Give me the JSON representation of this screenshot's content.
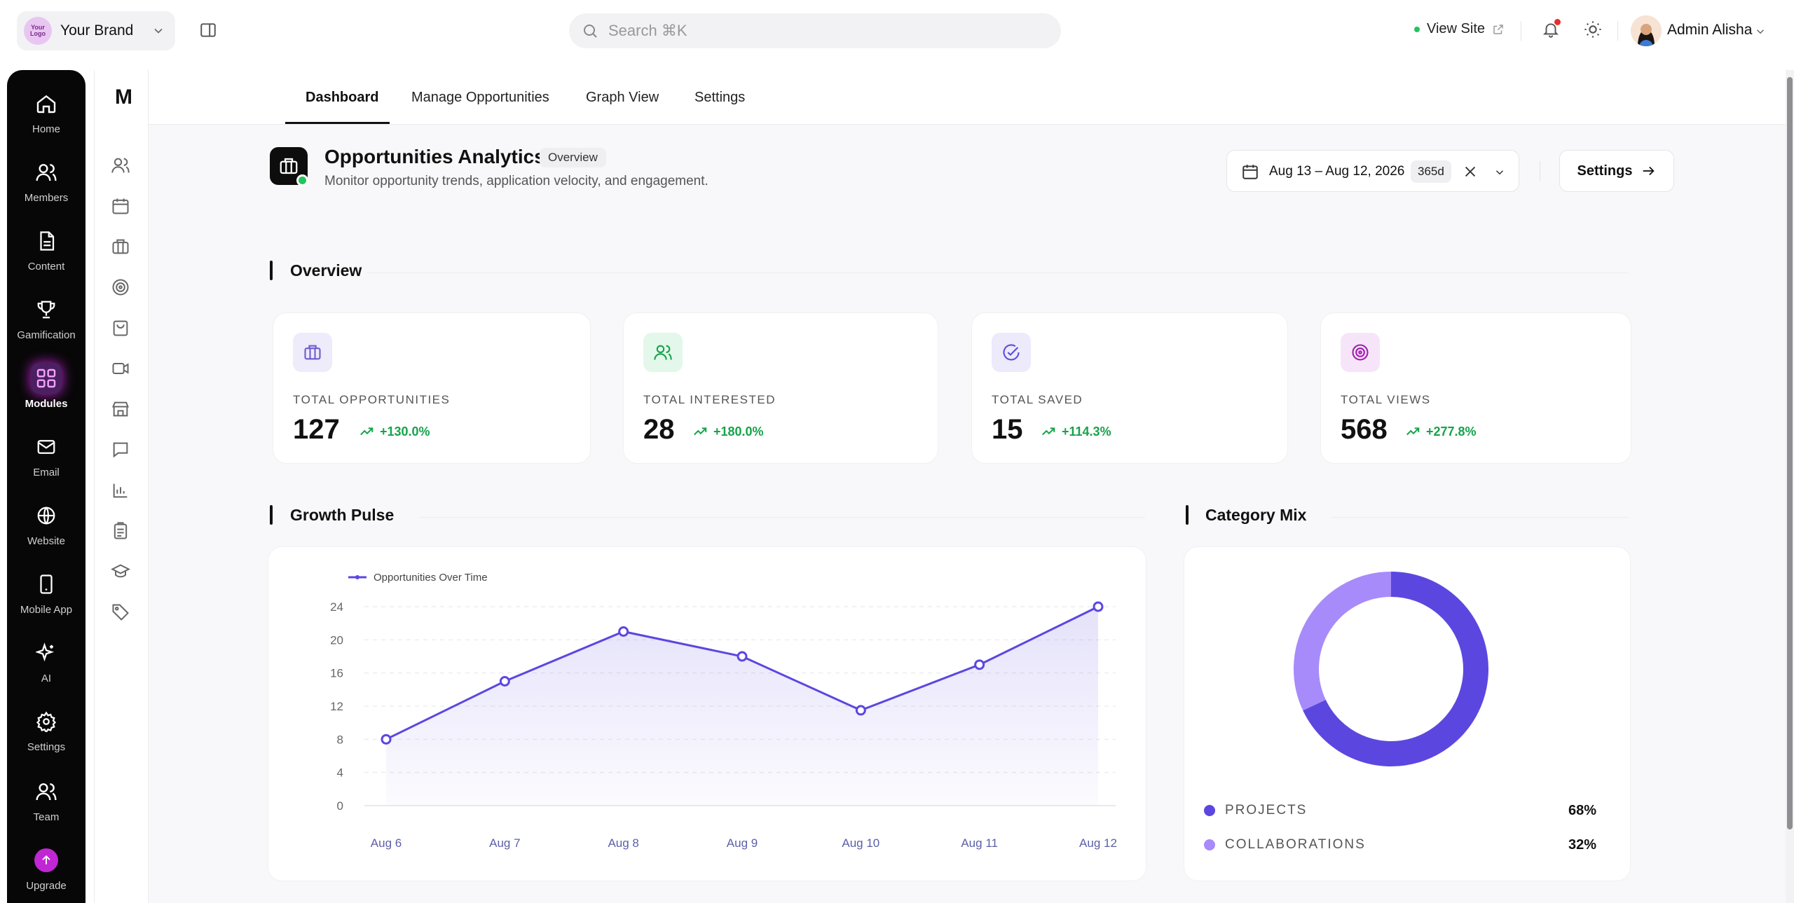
{
  "brand": {
    "logo_text": "Your Logo",
    "name": "Your Brand"
  },
  "search": {
    "placeholder": "Search ⌘K"
  },
  "header": {
    "view_site": "View Site",
    "user_name": "Admin Alisha"
  },
  "rail": [
    {
      "label": "Home",
      "icon": "home-icon"
    },
    {
      "label": "Members",
      "icon": "members-icon"
    },
    {
      "label": "Content",
      "icon": "content-icon"
    },
    {
      "label": "Gamification",
      "icon": "trophy-icon"
    },
    {
      "label": "Modules",
      "icon": "modules-icon",
      "active": true
    },
    {
      "label": "Email",
      "icon": "mail-icon"
    },
    {
      "label": "Website",
      "icon": "globe-icon"
    },
    {
      "label": "Mobile App",
      "icon": "phone-icon"
    },
    {
      "label": "AI",
      "icon": "sparkle-icon"
    },
    {
      "label": "Settings",
      "icon": "gear-icon"
    },
    {
      "label": "Team",
      "icon": "team-icon"
    },
    {
      "label": "Upgrade",
      "icon": "upgrade-icon"
    }
  ],
  "sub_rail": {
    "logo": "M"
  },
  "tabs": [
    {
      "label": "Dashboard",
      "active": true
    },
    {
      "label": "Manage Opportunities"
    },
    {
      "label": "Graph View"
    },
    {
      "label": "Settings"
    }
  ],
  "page": {
    "title": "Opportunities Analytics",
    "pill": "Overview",
    "subtitle": "Monitor opportunity trends, application velocity, and engagement.",
    "date_range": "Aug 13 – Aug 12, 2026",
    "date_badge": "365d",
    "settings_label": "Settings"
  },
  "sections": {
    "overview": "Overview",
    "growth": "Growth Pulse",
    "category": "Category Mix"
  },
  "stats": [
    {
      "label": "TOTAL OPPORTUNITIES",
      "value": "127",
      "delta": "+130.0%",
      "icon": "briefcase-icon",
      "color": "#6d5bd0",
      "bg": "#eeebfb"
    },
    {
      "label": "TOTAL INTERESTED",
      "value": "28",
      "delta": "+180.0%",
      "icon": "users-icon",
      "color": "#16a34a",
      "bg": "#e3f7ea"
    },
    {
      "label": "TOTAL SAVED",
      "value": "15",
      "delta": "+114.3%",
      "icon": "check-circle-icon",
      "color": "#5b4fd8",
      "bg": "#eceafb"
    },
    {
      "label": "TOTAL VIEWS",
      "value": "568",
      "delta": "+277.8%",
      "icon": "target-icon",
      "color": "#a21caf",
      "bg": "#f6e5f8"
    }
  ],
  "chart_data": [
    {
      "type": "area",
      "legend": "top-left",
      "series": [
        {
          "name": "Opportunities Over Time",
          "color": "#5b47e0",
          "values": [
            8,
            15,
            21,
            18,
            11.5,
            17,
            24
          ]
        }
      ],
      "categories": [
        "Aug 6",
        "Aug 7",
        "Aug 8",
        "Aug 9",
        "Aug 10",
        "Aug 11",
        "Aug 12"
      ],
      "yticks": [
        "0",
        "4",
        "8",
        "12",
        "16",
        "20",
        "24"
      ],
      "ylim": [
        0,
        24
      ],
      "grid": true
    },
    {
      "type": "pie",
      "donut": true,
      "slices": [
        {
          "label": "PROJECTS",
          "value": 68,
          "display": "68%",
          "color": "#5b47e0"
        },
        {
          "label": "COLLABORATIONS",
          "value": 32,
          "display": "32%",
          "color": "#a78bfa"
        }
      ]
    }
  ]
}
